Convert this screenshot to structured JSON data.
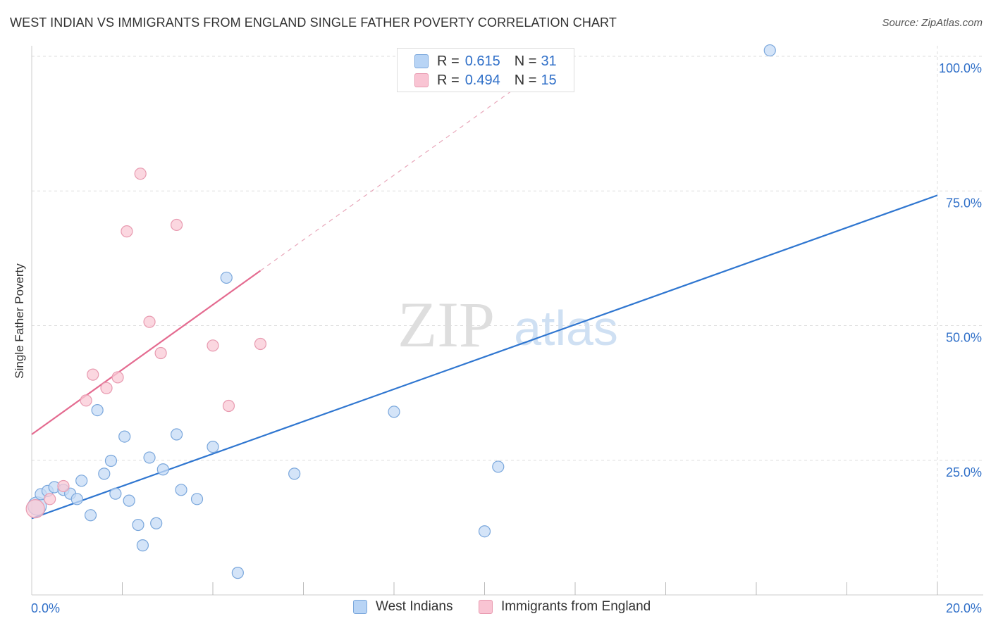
{
  "title": "WEST INDIAN VS IMMIGRANTS FROM ENGLAND SINGLE FATHER POVERTY CORRELATION CHART",
  "source": "Source: ZipAtlas.com",
  "watermark": {
    "zip": "ZIP",
    "atlas": "atlas"
  },
  "legend": {
    "r_label": "R =",
    "n_label": "N =",
    "rows": [
      {
        "r": "0.615",
        "n": "31",
        "swatch_fill": "#b8d4f5",
        "swatch_stroke": "#7aa7dc"
      },
      {
        "r": "0.494",
        "n": "15",
        "swatch_fill": "#f9c4d3",
        "swatch_stroke": "#e89ab0"
      }
    ]
  },
  "bottom_legend": [
    {
      "label": "West Indians",
      "swatch_fill": "#b8d4f5",
      "swatch_stroke": "#7aa7dc"
    },
    {
      "label": "Immigrants from England",
      "swatch_fill": "#f9c4d3",
      "swatch_stroke": "#e89ab0"
    }
  ],
  "chart_data": {
    "type": "scatter",
    "title": "WEST INDIAN VS IMMIGRANTS FROM ENGLAND SINGLE FATHER POVERTY CORRELATION CHART",
    "xlabel": "",
    "ylabel": "Single Father Poverty",
    "xlim": [
      0,
      20
    ],
    "ylim": [
      0,
      100
    ],
    "x_tick_labels": [
      "0.0%",
      "20.0%"
    ],
    "y_ticks": [
      25,
      50,
      75,
      100
    ],
    "y_tick_labels": [
      "25.0%",
      "50.0%",
      "75.0%",
      "100.0%"
    ],
    "grid": true,
    "series": [
      {
        "name": "West Indians",
        "color": "#7aa7dc",
        "fill": "#c5dbf5",
        "line_color": "#2f76d0",
        "points": [
          [
            0.12,
            16.5
          ],
          [
            0.2,
            18.7
          ],
          [
            0.35,
            19.3
          ],
          [
            0.5,
            20.0
          ],
          [
            0.7,
            19.5
          ],
          [
            0.85,
            18.8
          ],
          [
            1.0,
            17.8
          ],
          [
            1.1,
            21.2
          ],
          [
            1.3,
            14.8
          ],
          [
            1.45,
            34.3
          ],
          [
            1.6,
            22.5
          ],
          [
            1.75,
            24.9
          ],
          [
            1.85,
            18.8
          ],
          [
            2.05,
            29.4
          ],
          [
            2.15,
            17.5
          ],
          [
            2.35,
            13.0
          ],
          [
            2.45,
            9.2
          ],
          [
            2.6,
            25.5
          ],
          [
            2.75,
            13.3
          ],
          [
            2.9,
            23.3
          ],
          [
            3.2,
            29.8
          ],
          [
            3.3,
            19.5
          ],
          [
            3.65,
            17.8
          ],
          [
            4.0,
            27.5
          ],
          [
            4.3,
            58.9
          ],
          [
            4.55,
            4.1
          ],
          [
            5.8,
            22.5
          ],
          [
            8.0,
            34.0
          ],
          [
            10.0,
            11.8
          ],
          [
            10.3,
            23.8
          ],
          [
            16.3,
            101.1
          ]
        ],
        "trend": {
          "x": [
            0,
            20
          ],
          "y": [
            14.2,
            74.2
          ]
        }
      },
      {
        "name": "Immigrants from England",
        "color": "#e89ab0",
        "fill": "#f9c9d6",
        "line_color": "#e46b90",
        "points": [
          [
            0.08,
            16.0
          ],
          [
            0.4,
            17.8
          ],
          [
            0.7,
            20.2
          ],
          [
            1.2,
            36.1
          ],
          [
            1.35,
            40.9
          ],
          [
            1.65,
            38.4
          ],
          [
            1.9,
            40.4
          ],
          [
            2.1,
            67.5
          ],
          [
            2.4,
            78.2
          ],
          [
            2.6,
            50.7
          ],
          [
            2.85,
            44.9
          ],
          [
            3.2,
            68.7
          ],
          [
            4.0,
            46.3
          ],
          [
            4.35,
            35.1
          ],
          [
            5.05,
            46.6
          ]
        ],
        "trend": {
          "x": [
            0,
            5.05
          ],
          "y": [
            29.8,
            60.2
          ]
        },
        "trend_extension": {
          "x": [
            5.05,
            11.4
          ],
          "y": [
            60.2,
            98.4
          ]
        }
      }
    ]
  }
}
